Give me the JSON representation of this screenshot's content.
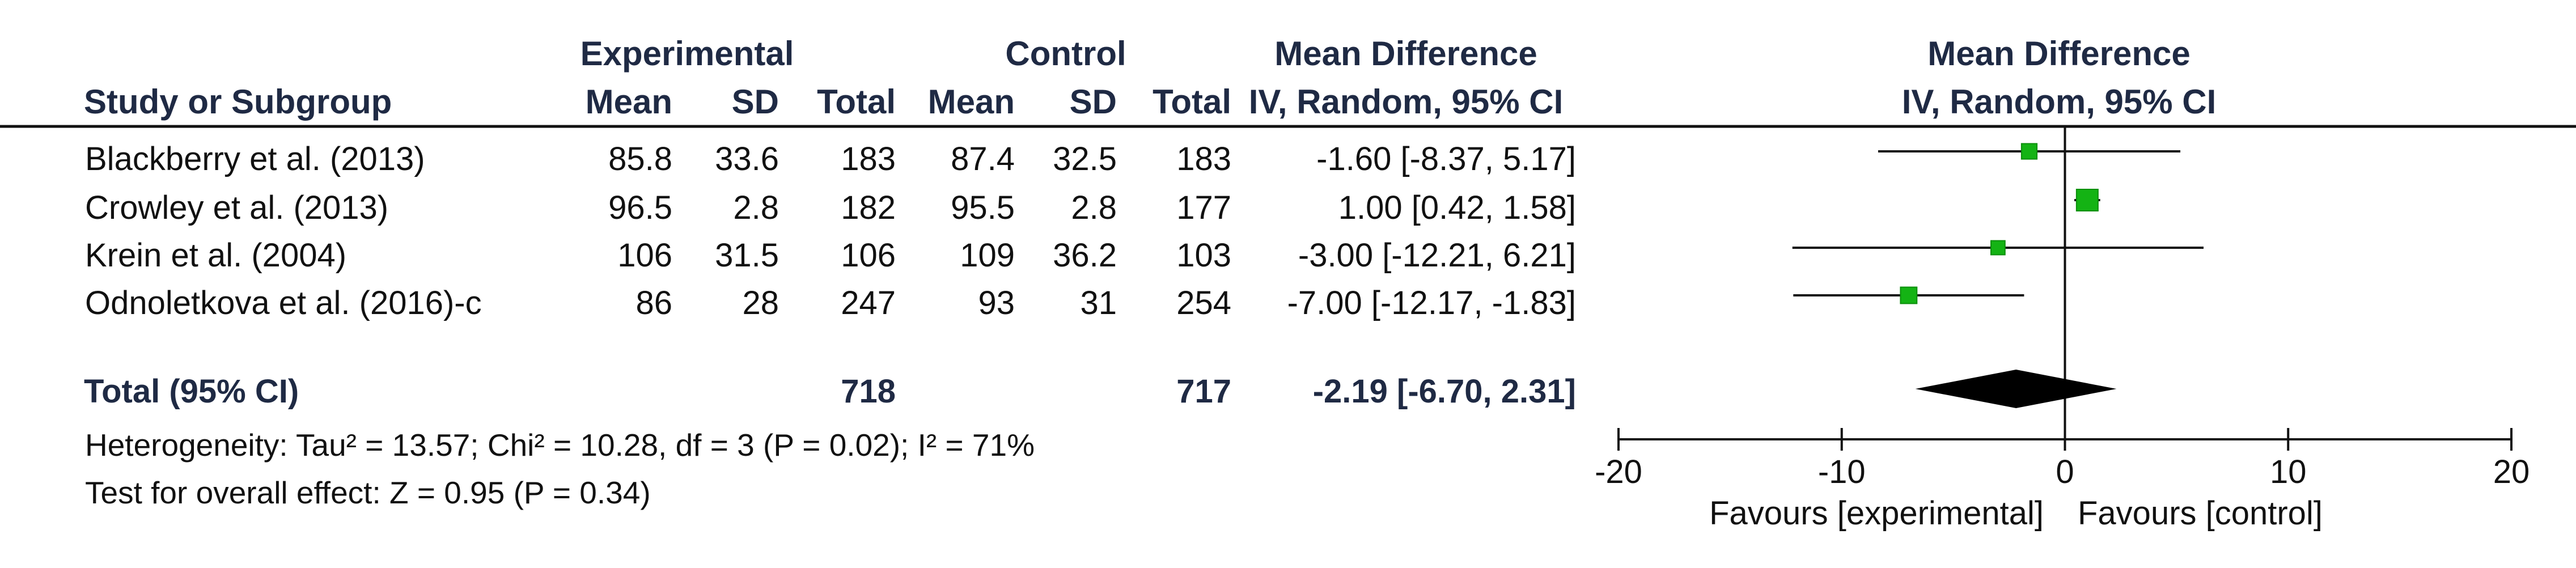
{
  "header": {
    "group_experimental": "Experimental",
    "group_control": "Control",
    "effect_title": "Mean Difference",
    "study_col": "Study or Subgroup",
    "col_mean": "Mean",
    "col_sd": "SD",
    "col_total": "Total",
    "effect_subtitle": "IV, Random, 95% CI",
    "plot_title": "Mean Difference",
    "plot_subtitle": "IV, Random, 95% CI"
  },
  "studies": [
    {
      "name": "Blackberry et al. (2013)",
      "exp_mean": "85.8",
      "exp_sd": "33.6",
      "exp_total": "183",
      "ctrl_mean": "87.4",
      "ctrl_sd": "32.5",
      "ctrl_total": "183",
      "ci_text": "-1.60 [-8.37, 5.17]"
    },
    {
      "name": "Crowley et al. (2013)",
      "exp_mean": "96.5",
      "exp_sd": "2.8",
      "exp_total": "182",
      "ctrl_mean": "95.5",
      "ctrl_sd": "2.8",
      "ctrl_total": "177",
      "ci_text": "1.00 [0.42, 1.58]"
    },
    {
      "name": "Krein et al. (2004)",
      "exp_mean": "106",
      "exp_sd": "31.5",
      "exp_total": "106",
      "ctrl_mean": "109",
      "ctrl_sd": "36.2",
      "ctrl_total": "103",
      "ci_text": "-3.00 [-12.21, 6.21]"
    },
    {
      "name": "Odnoletkova et al. (2016)-c",
      "exp_mean": "86",
      "exp_sd": "28",
      "exp_total": "247",
      "ctrl_mean": "93",
      "ctrl_sd": "31",
      "ctrl_total": "254",
      "ci_text": "-7.00 [-12.17, -1.83]"
    }
  ],
  "total": {
    "label": "Total (95% CI)",
    "exp_total": "718",
    "ctrl_total": "717",
    "ci_text": "-2.19 [-6.70, 2.31]"
  },
  "heterogeneity": "Heterogeneity: Tau² = 13.57; Chi² = 10.28, df = 3 (P = 0.02); I² = 71%",
  "overall_effect": "Test for overall effect: Z = 0.95 (P = 0.34)",
  "chart_data": {
    "type": "scatter",
    "subtype": "forest-plot",
    "title": "Mean Difference",
    "subtitle": "IV, Random, 95% CI",
    "xlim": [
      -20,
      20
    ],
    "xticks": [
      -20,
      -10,
      0,
      10,
      20
    ],
    "xtick_labels": [
      "-20",
      "-10",
      "0",
      "10",
      "20"
    ],
    "favours_left": "Favours [experimental]",
    "favours_right": "Favours [control]",
    "reference_line": 0,
    "colors": {
      "square_fill": "#14b314",
      "diamond_fill": "#000000"
    },
    "points": [
      {
        "study": "Blackberry et al. (2013)",
        "estimate": -1.6,
        "ci_low": -8.37,
        "ci_high": 5.17,
        "marker_scale": 0.55
      },
      {
        "study": "Crowley et al. (2013)",
        "estimate": 1.0,
        "ci_low": 0.42,
        "ci_high": 1.58,
        "marker_scale": 1.0
      },
      {
        "study": "Krein et al. (2004)",
        "estimate": -3.0,
        "ci_low": -12.21,
        "ci_high": 6.21,
        "marker_scale": 0.45
      },
      {
        "study": "Odnoletkova et al. (2016)-c",
        "estimate": -7.0,
        "ci_low": -12.17,
        "ci_high": -1.83,
        "marker_scale": 0.62
      }
    ],
    "pooled": {
      "estimate": -2.19,
      "ci_low": -6.7,
      "ci_high": 2.31
    }
  }
}
